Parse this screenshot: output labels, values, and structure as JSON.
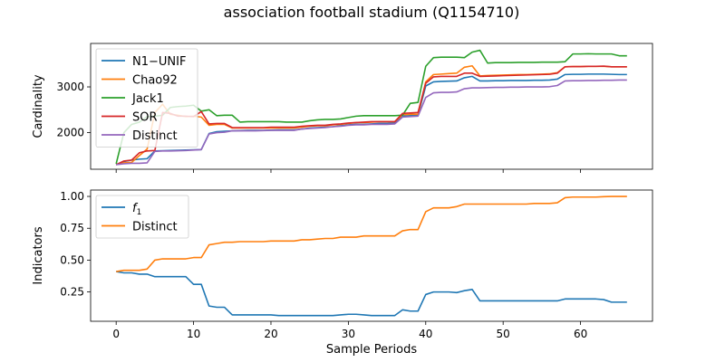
{
  "figure": {
    "title": "association football stadium (Q1154710)"
  },
  "chart_data": [
    {
      "type": "line",
      "title": "association football stadium (Q1154710)",
      "xlabel": "",
      "ylabel": "Cardinality",
      "xlim": [
        -3.3,
        69.3
      ],
      "ylim": [
        1200,
        3950
      ],
      "xticks": [
        0,
        10,
        20,
        30,
        40,
        50,
        60
      ],
      "yticks": [
        2000,
        3000
      ],
      "ytick_labels": [
        "2000",
        "3000"
      ],
      "grid": false,
      "legend_position": "upper-left",
      "x": [
        0,
        1,
        2,
        3,
        4,
        5,
        6,
        7,
        8,
        9,
        10,
        11,
        12,
        13,
        14,
        15,
        16,
        17,
        18,
        19,
        20,
        21,
        22,
        23,
        24,
        25,
        26,
        27,
        28,
        29,
        30,
        31,
        32,
        33,
        34,
        35,
        36,
        37,
        38,
        39,
        40,
        41,
        42,
        43,
        44,
        45,
        46,
        47,
        48,
        49,
        50,
        51,
        52,
        53,
        54,
        55,
        56,
        57,
        58,
        59,
        60,
        61,
        62,
        63,
        64,
        65,
        66
      ],
      "series": [
        {
          "name": "N1−UNIF",
          "color": "#1f77b4",
          "values": [
            1300,
            1370,
            1400,
            1420,
            1430,
            1600,
            1605,
            1610,
            1615,
            1620,
            1625,
            1630,
            1980,
            2020,
            2030,
            2040,
            2045,
            2050,
            2050,
            2050,
            2055,
            2060,
            2060,
            2060,
            2080,
            2100,
            2110,
            2120,
            2130,
            2150,
            2170,
            2180,
            2180,
            2190,
            2200,
            2200,
            2210,
            2360,
            2370,
            2380,
            3020,
            3110,
            3120,
            3125,
            3130,
            3200,
            3230,
            3130,
            3130,
            3135,
            3135,
            3140,
            3140,
            3140,
            3145,
            3145,
            3150,
            3170,
            3270,
            3275,
            3275,
            3280,
            3280,
            3280,
            3275,
            3270,
            3270
          ]
        },
        {
          "name": "Chao92",
          "color": "#ff7f0e",
          "values": [
            1300,
            1340,
            1350,
            1500,
            1640,
            2440,
            2620,
            2400,
            2380,
            2350,
            2360,
            2340,
            2160,
            2180,
            2180,
            2100,
            2100,
            2100,
            2100,
            2100,
            2100,
            2100,
            2100,
            2100,
            2120,
            2140,
            2150,
            2150,
            2170,
            2180,
            2200,
            2220,
            2220,
            2230,
            2240,
            2240,
            2240,
            2390,
            2400,
            2400,
            3110,
            3270,
            3280,
            3290,
            3300,
            3430,
            3460,
            3240,
            3250,
            3255,
            3260,
            3265,
            3270,
            3270,
            3275,
            3280,
            3285,
            3310,
            3440,
            3445,
            3445,
            3450,
            3450,
            3450,
            3440,
            3440,
            3440
          ]
        },
        {
          "name": "Jack1",
          "color": "#2ca02c",
          "values": [
            1320,
            2000,
            2180,
            2230,
            2350,
            2360,
            2380,
            2550,
            2570,
            2580,
            2600,
            2470,
            2500,
            2370,
            2380,
            2380,
            2230,
            2240,
            2240,
            2240,
            2240,
            2240,
            2230,
            2230,
            2230,
            2260,
            2280,
            2290,
            2290,
            2300,
            2330,
            2360,
            2370,
            2370,
            2370,
            2370,
            2370,
            2380,
            2640,
            2660,
            3450,
            3640,
            3650,
            3650,
            3650,
            3640,
            3760,
            3800,
            3520,
            3530,
            3530,
            3530,
            3535,
            3535,
            3535,
            3540,
            3540,
            3540,
            3550,
            3720,
            3720,
            3725,
            3720,
            3720,
            3720,
            3680,
            3680
          ]
        },
        {
          "name": "SOR",
          "color": "#d62728",
          "values": [
            1300,
            1380,
            1400,
            1560,
            1600,
            1610,
            2440,
            2420,
            2360,
            2360,
            2350,
            2460,
            2190,
            2200,
            2200,
            2110,
            2110,
            2110,
            2110,
            2110,
            2120,
            2120,
            2120,
            2120,
            2140,
            2150,
            2160,
            2160,
            2180,
            2190,
            2210,
            2220,
            2230,
            2240,
            2240,
            2240,
            2240,
            2420,
            2430,
            2440,
            3080,
            3220,
            3230,
            3230,
            3230,
            3300,
            3300,
            3230,
            3235,
            3240,
            3245,
            3250,
            3255,
            3260,
            3265,
            3270,
            3275,
            3300,
            3440,
            3445,
            3445,
            3450,
            3450,
            3455,
            3440,
            3440,
            3440
          ]
        },
        {
          "name": "Distinct",
          "color": "#9467bd",
          "values": [
            1300,
            1320,
            1330,
            1330,
            1340,
            1590,
            1600,
            1600,
            1605,
            1610,
            1620,
            1630,
            1970,
            2000,
            2010,
            2040,
            2040,
            2040,
            2040,
            2045,
            2050,
            2050,
            2050,
            2050,
            2080,
            2090,
            2100,
            2110,
            2130,
            2140,
            2160,
            2170,
            2170,
            2180,
            2180,
            2180,
            2190,
            2340,
            2350,
            2360,
            2770,
            2870,
            2880,
            2880,
            2890,
            2960,
            2980,
            2980,
            2985,
            2990,
            2990,
            2995,
            2995,
            3000,
            3000,
            3000,
            3005,
            3030,
            3130,
            3135,
            3135,
            3140,
            3140,
            3145,
            3145,
            3150,
            3150
          ]
        }
      ]
    },
    {
      "type": "line",
      "title": "",
      "xlabel": "Sample Periods",
      "ylabel": "Indicators",
      "xlim": [
        -3.3,
        69.3
      ],
      "ylim": [
        0.02,
        1.05
      ],
      "xticks": [
        0,
        10,
        20,
        30,
        40,
        50,
        60
      ],
      "xtick_labels": [
        "0",
        "10",
        "20",
        "30",
        "40",
        "50",
        "60"
      ],
      "yticks": [
        0.25,
        0.5,
        0.75,
        1.0
      ],
      "ytick_labels": [
        "0.25",
        "0.50",
        "0.75",
        "1.00"
      ],
      "grid": false,
      "legend_position": "upper-left",
      "x": [
        0,
        1,
        2,
        3,
        4,
        5,
        6,
        7,
        8,
        9,
        10,
        11,
        12,
        13,
        14,
        15,
        16,
        17,
        18,
        19,
        20,
        21,
        22,
        23,
        24,
        25,
        26,
        27,
        28,
        29,
        30,
        31,
        32,
        33,
        34,
        35,
        36,
        37,
        38,
        39,
        40,
        41,
        42,
        43,
        44,
        45,
        46,
        47,
        48,
        49,
        50,
        51,
        52,
        53,
        54,
        55,
        56,
        57,
        58,
        59,
        60,
        61,
        62,
        63,
        64,
        65,
        66
      ],
      "series": [
        {
          "name": "f_1",
          "label_main": "f",
          "label_sub": "1",
          "color": "#1f77b4",
          "values": [
            0.41,
            0.4,
            0.4,
            0.39,
            0.39,
            0.37,
            0.37,
            0.37,
            0.37,
            0.37,
            0.31,
            0.31,
            0.14,
            0.13,
            0.13,
            0.07,
            0.07,
            0.07,
            0.07,
            0.07,
            0.07,
            0.065,
            0.065,
            0.065,
            0.065,
            0.065,
            0.065,
            0.065,
            0.065,
            0.07,
            0.075,
            0.075,
            0.07,
            0.065,
            0.065,
            0.065,
            0.065,
            0.11,
            0.1,
            0.1,
            0.23,
            0.25,
            0.25,
            0.25,
            0.245,
            0.26,
            0.27,
            0.18,
            0.18,
            0.18,
            0.18,
            0.18,
            0.18,
            0.18,
            0.18,
            0.18,
            0.18,
            0.18,
            0.195,
            0.195,
            0.195,
            0.195,
            0.195,
            0.19,
            0.17,
            0.17,
            0.17
          ]
        },
        {
          "name": "Distinct",
          "color": "#ff7f0e",
          "values": [
            0.41,
            0.42,
            0.42,
            0.42,
            0.43,
            0.5,
            0.51,
            0.51,
            0.51,
            0.51,
            0.52,
            0.52,
            0.62,
            0.63,
            0.64,
            0.64,
            0.645,
            0.645,
            0.645,
            0.645,
            0.65,
            0.65,
            0.65,
            0.65,
            0.66,
            0.66,
            0.665,
            0.67,
            0.67,
            0.68,
            0.68,
            0.68,
            0.69,
            0.69,
            0.69,
            0.69,
            0.69,
            0.73,
            0.74,
            0.74,
            0.88,
            0.91,
            0.91,
            0.91,
            0.92,
            0.94,
            0.94,
            0.94,
            0.94,
            0.94,
            0.94,
            0.94,
            0.94,
            0.94,
            0.945,
            0.945,
            0.945,
            0.95,
            0.99,
            0.995,
            0.995,
            0.995,
            0.995,
            0.998,
            1.0,
            1.0,
            1.0
          ]
        }
      ]
    }
  ]
}
